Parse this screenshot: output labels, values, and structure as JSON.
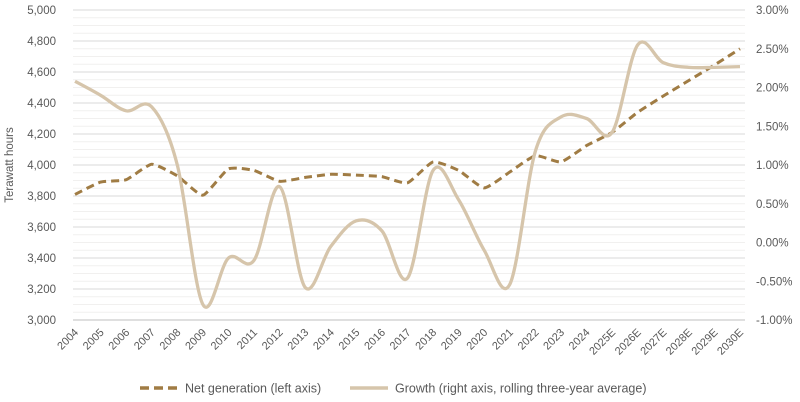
{
  "chart_data": {
    "type": "line",
    "title": "",
    "ylabel": "Terawatt hours",
    "grid": true,
    "legend_position": "bottom",
    "categories": [
      "2004",
      "2005",
      "2006",
      "2007",
      "2008",
      "2009",
      "2010",
      "2011",
      "2012",
      "2013",
      "2014",
      "2015",
      "2016",
      "2017",
      "2018",
      "2019",
      "2020",
      "2021",
      "2022",
      "2023",
      "2024",
      "2025E",
      "2026E",
      "2027E",
      "2028E",
      "2029E",
      "2030E"
    ],
    "series": [
      {
        "name": "Net generation (left axis)",
        "axis": "left",
        "style": "dashed",
        "color": "#a07c44",
        "values": [
          3810,
          3890,
          3905,
          4005,
          3930,
          3805,
          3975,
          3965,
          3895,
          3920,
          3940,
          3935,
          3925,
          3885,
          4020,
          3965,
          3852,
          3955,
          4060,
          4020,
          4125,
          4210,
          4340,
          4445,
          4545,
          4645,
          4750
        ]
      },
      {
        "name": "Growth (right axis, rolling three-year average)",
        "axis": "right",
        "style": "solid",
        "color": "#d6c5ab",
        "values": [
          2.08,
          1.9,
          1.7,
          1.75,
          1.0,
          -0.8,
          -0.2,
          -0.23,
          0.72,
          -0.58,
          -0.05,
          0.28,
          0.15,
          -0.46,
          0.93,
          0.55,
          -0.1,
          -0.54,
          1.18,
          1.62,
          1.6,
          1.42,
          2.55,
          2.32,
          2.26,
          2.26,
          2.27
        ]
      }
    ],
    "left_axis": {
      "min": 3000,
      "max": 5000,
      "major_step": 200,
      "minor_step": 50,
      "ticks": [
        {
          "v": 5000,
          "label": "5,000"
        },
        {
          "v": 4800,
          "label": "4,800"
        },
        {
          "v": 4600,
          "label": "4,600"
        },
        {
          "v": 4400,
          "label": "4,400"
        },
        {
          "v": 4200,
          "label": "4,200"
        },
        {
          "v": 4000,
          "label": "4,000"
        },
        {
          "v": 3800,
          "label": "3,800"
        },
        {
          "v": 3600,
          "label": "3,600"
        },
        {
          "v": 3400,
          "label": "3,400"
        },
        {
          "v": 3200,
          "label": "3,200"
        },
        {
          "v": 3000,
          "label": "3,000"
        }
      ]
    },
    "right_axis": {
      "min": -1.0,
      "max": 3.0,
      "step": 0.5,
      "ticks": [
        {
          "v": 3.0,
          "label": "3.00%"
        },
        {
          "v": 2.5,
          "label": "2.50%"
        },
        {
          "v": 2.0,
          "label": "2.00%"
        },
        {
          "v": 1.5,
          "label": "1.50%"
        },
        {
          "v": 1.0,
          "label": "1.00%"
        },
        {
          "v": 0.5,
          "label": "0.50%"
        },
        {
          "v": 0.0,
          "label": "0.00%"
        },
        {
          "v": -0.5,
          "label": "-0.50%"
        },
        {
          "v": -1.0,
          "label": "-1.00%"
        }
      ]
    },
    "colors": {
      "axis_text": "#595959",
      "grid_major": "#d9d9d9",
      "grid_minor": "#f1f0ef",
      "grid_bottom": "#bfbfbf"
    }
  }
}
